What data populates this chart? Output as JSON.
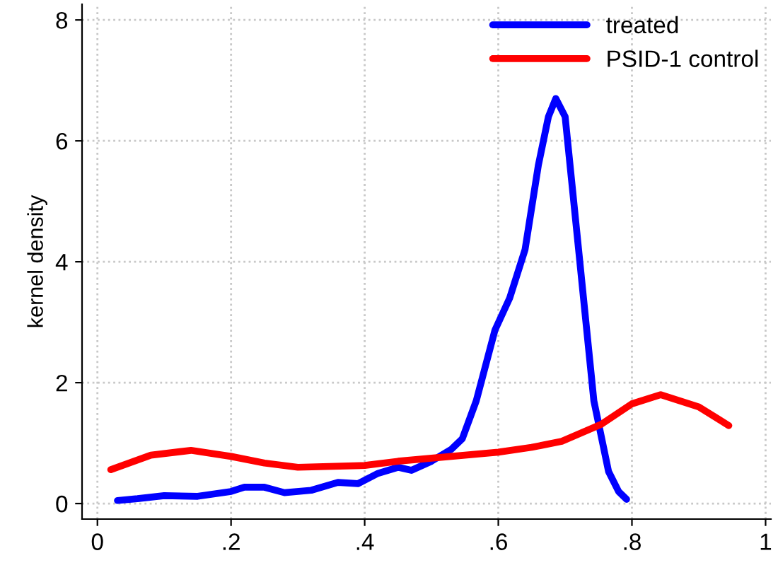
{
  "chart_data": {
    "type": "line",
    "ylabel": "kernel density",
    "xlim": [
      -0.023,
      1.008
    ],
    "ylim": [
      -0.257,
      8.26
    ],
    "xticks": [
      {
        "value": 0,
        "label": "0"
      },
      {
        "value": 0.2,
        "label": ".2"
      },
      {
        "value": 0.4,
        "label": ".4"
      },
      {
        "value": 0.6,
        "label": ".6"
      },
      {
        "value": 0.8,
        "label": ".8"
      },
      {
        "value": 1,
        "label": "1"
      }
    ],
    "yticks": [
      0,
      2,
      4,
      6,
      8
    ],
    "grid": true,
    "legend": "top right",
    "marker": "none",
    "line_style": "solid",
    "series": [
      {
        "name": "treated",
        "color": "#0000ff",
        "x": [
          0.03,
          0.06,
          0.1,
          0.15,
          0.2,
          0.22,
          0.25,
          0.28,
          0.32,
          0.36,
          0.39,
          0.42,
          0.45,
          0.47,
          0.5,
          0.53,
          0.546,
          0.567,
          0.595,
          0.617,
          0.64,
          0.66,
          0.675,
          0.686,
          0.7,
          0.722,
          0.743,
          0.765,
          0.78,
          0.792
        ],
        "values": [
          0.05,
          0.08,
          0.13,
          0.12,
          0.2,
          0.27,
          0.27,
          0.18,
          0.22,
          0.35,
          0.33,
          0.5,
          0.6,
          0.55,
          0.7,
          0.9,
          1.07,
          1.7,
          2.87,
          3.4,
          4.2,
          5.6,
          6.4,
          6.7,
          6.4,
          4.0,
          1.7,
          0.53,
          0.2,
          0.07
        ]
      },
      {
        "name": "PSID-1 control",
        "color": "#ff0000",
        "x": [
          0.02,
          0.08,
          0.14,
          0.2,
          0.25,
          0.3,
          0.4,
          0.45,
          0.5,
          0.6,
          0.65,
          0.695,
          0.754,
          0.8,
          0.843,
          0.9,
          0.945
        ],
        "values": [
          0.56,
          0.8,
          0.88,
          0.78,
          0.67,
          0.6,
          0.63,
          0.7,
          0.75,
          0.85,
          0.93,
          1.03,
          1.31,
          1.65,
          1.8,
          1.6,
          1.29
        ]
      }
    ]
  }
}
